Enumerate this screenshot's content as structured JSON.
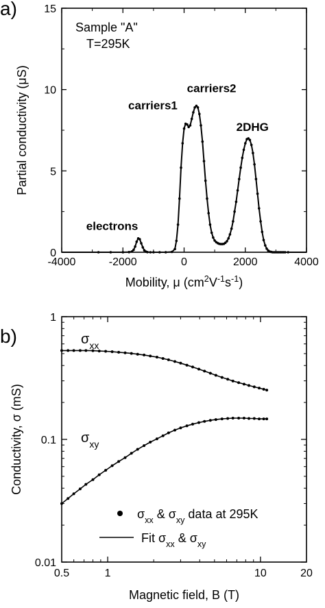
{
  "chart_data": [
    {
      "panel_label": "a)",
      "type": "line",
      "title_lines": [
        "Sample \"A\"",
        "T=295K"
      ],
      "xlabel": "Mobility, μ (cm²V⁻¹s⁻¹)",
      "xlabel_parts": {
        "pre": "Mobility, μ (cm",
        "sup1": "2",
        "mid1": "V",
        "sup2": "-1",
        "mid2": "s",
        "sup3": "-1",
        "post": ")"
      },
      "ylabel": "Partial conductivity (μS)",
      "xlim": [
        -4000,
        4000
      ],
      "ylim": [
        0,
        15
      ],
      "xticks": [
        -4000,
        -2000,
        0,
        2000,
        4000
      ],
      "yticks": [
        0,
        5,
        10,
        15
      ],
      "xtick_labels": [
        "-4000",
        "-2000",
        "0",
        "2000",
        "4000"
      ],
      "ytick_labels": [
        "0",
        "5",
        "10",
        "15"
      ],
      "annotations": [
        {
          "text": "electrons",
          "x": -1500,
          "y": 0.9
        },
        {
          "text": "carriers1",
          "x": 100,
          "y": 7.9
        },
        {
          "text": "carriers2",
          "x": 450,
          "y": 9.0
        },
        {
          "text": "2DHG",
          "x": 2550,
          "y": 7.0
        }
      ],
      "x": [
        -4000,
        -3600,
        -3200,
        -2800,
        -2400,
        -2000,
        -1800,
        -1700,
        -1650,
        -1600,
        -1550,
        -1500,
        -1450,
        -1400,
        -1350,
        -1300,
        -1250,
        -1200,
        -1100,
        -1000,
        -800,
        -600,
        -400,
        -300,
        -250,
        -200,
        -150,
        -100,
        -50,
        0,
        50,
        100,
        150,
        200,
        250,
        300,
        350,
        400,
        450,
        500,
        550,
        600,
        650,
        700,
        750,
        800,
        850,
        900,
        950,
        1000,
        1050,
        1100,
        1150,
        1200,
        1250,
        1300,
        1350,
        1400,
        1450,
        1500,
        1550,
        1600,
        1650,
        1700,
        1750,
        1800,
        1850,
        1900,
        1950,
        2000,
        2050,
        2100,
        2150,
        2200,
        2250,
        2300,
        2350,
        2400,
        2450,
        2500,
        2550,
        2600,
        2650,
        2700,
        2750,
        2800,
        2850,
        2900,
        2950,
        3000,
        3050,
        3100,
        3150,
        3200,
        3250,
        3300,
        3400,
        3500,
        3600,
        3800,
        4000
      ],
      "y": [
        0,
        0,
        0,
        0,
        0,
        0,
        0.01,
        0.05,
        0.15,
        0.35,
        0.65,
        0.85,
        0.8,
        0.55,
        0.3,
        0.12,
        0.04,
        0.01,
        0,
        0,
        0,
        0,
        0.02,
        0.2,
        0.7,
        1.7,
        3.3,
        5.2,
        6.7,
        7.6,
        7.9,
        7.85,
        7.7,
        7.8,
        8.2,
        8.6,
        8.9,
        9.0,
        8.9,
        8.5,
        7.8,
        6.8,
        5.6,
        4.4,
        3.3,
        2.4,
        1.7,
        1.2,
        0.9,
        0.72,
        0.62,
        0.56,
        0.52,
        0.5,
        0.5,
        0.52,
        0.58,
        0.68,
        0.85,
        1.1,
        1.45,
        1.9,
        2.5,
        3.1,
        3.8,
        4.5,
        5.2,
        5.8,
        6.3,
        6.7,
        6.95,
        7.0,
        6.9,
        6.6,
        6.1,
        5.4,
        4.5,
        3.6,
        2.7,
        1.9,
        1.25,
        0.75,
        0.42,
        0.22,
        0.1,
        0.04,
        0.015,
        0,
        0,
        0,
        0,
        0,
        0,
        0,
        0,
        0,
        0,
        0,
        0,
        0,
        0
      ]
    },
    {
      "panel_label": "b)",
      "type": "scatter",
      "xlabel": "Magnetic field, B (T)",
      "ylabel": "Conductivity, σ (mS)",
      "xscale": "log",
      "yscale": "log",
      "xlim": [
        0.5,
        20
      ],
      "ylim": [
        0.01,
        1
      ],
      "xtick_labels": [
        "0.5",
        "1",
        "10",
        "20"
      ],
      "xtick_values": [
        0.5,
        1,
        10,
        20
      ],
      "ytick_labels": [
        "0.01",
        "0.1",
        "1"
      ],
      "ytick_values": [
        0.01,
        0.1,
        1
      ],
      "series_labels": [
        {
          "main": "σ",
          "sub": "xx"
        },
        {
          "main": "σ",
          "sub": "xy"
        }
      ],
      "legend": {
        "placement": "bottom-right",
        "entries": [
          {
            "marker": "dot",
            "parts": [
              "σ",
              "xx",
              " & σ",
              "xy",
              " data at 295K"
            ]
          },
          {
            "marker": "line",
            "parts": [
              "Fit σ",
              "xx",
              " & σ",
              "xy",
              ""
            ]
          }
        ]
      },
      "series": [
        {
          "sub": "xx",
          "B": [
            0.5,
            0.55,
            0.6,
            0.66,
            0.72,
            0.8,
            0.88,
            0.97,
            1.07,
            1.18,
            1.3,
            1.43,
            1.57,
            1.73,
            1.9,
            2.1,
            2.3,
            2.5,
            2.75,
            3.0,
            3.3,
            3.6,
            3.95,
            4.3,
            4.7,
            5.1,
            5.6,
            6.1,
            6.6,
            7.2,
            7.8,
            8.4,
            9.1,
            9.8,
            10.5,
            11.0
          ],
          "sigma": [
            0.53,
            0.53,
            0.53,
            0.53,
            0.53,
            0.528,
            0.525,
            0.522,
            0.518,
            0.513,
            0.508,
            0.502,
            0.495,
            0.487,
            0.478,
            0.468,
            0.456,
            0.445,
            0.431,
            0.418,
            0.403,
            0.389,
            0.374,
            0.36,
            0.346,
            0.333,
            0.32,
            0.309,
            0.299,
            0.29,
            0.282,
            0.275,
            0.268,
            0.262,
            0.256,
            0.252
          ]
        },
        {
          "sub": "xy",
          "B": [
            0.5,
            0.55,
            0.6,
            0.66,
            0.72,
            0.8,
            0.88,
            0.97,
            1.07,
            1.18,
            1.3,
            1.43,
            1.57,
            1.73,
            1.9,
            2.1,
            2.3,
            2.5,
            2.75,
            3.0,
            3.3,
            3.6,
            3.95,
            4.3,
            4.7,
            5.1,
            5.6,
            6.1,
            6.6,
            7.2,
            7.8,
            8.4,
            9.1,
            9.8,
            10.5,
            11.0
          ],
          "sigma": [
            0.03,
            0.033,
            0.036,
            0.0395,
            0.043,
            0.047,
            0.0515,
            0.056,
            0.061,
            0.066,
            0.071,
            0.077,
            0.083,
            0.089,
            0.095,
            0.101,
            0.107,
            0.113,
            0.119,
            0.124,
            0.129,
            0.133,
            0.137,
            0.14,
            0.143,
            0.145,
            0.147,
            0.148,
            0.149,
            0.149,
            0.149,
            0.148,
            0.148,
            0.147,
            0.147,
            0.147
          ]
        }
      ]
    }
  ]
}
